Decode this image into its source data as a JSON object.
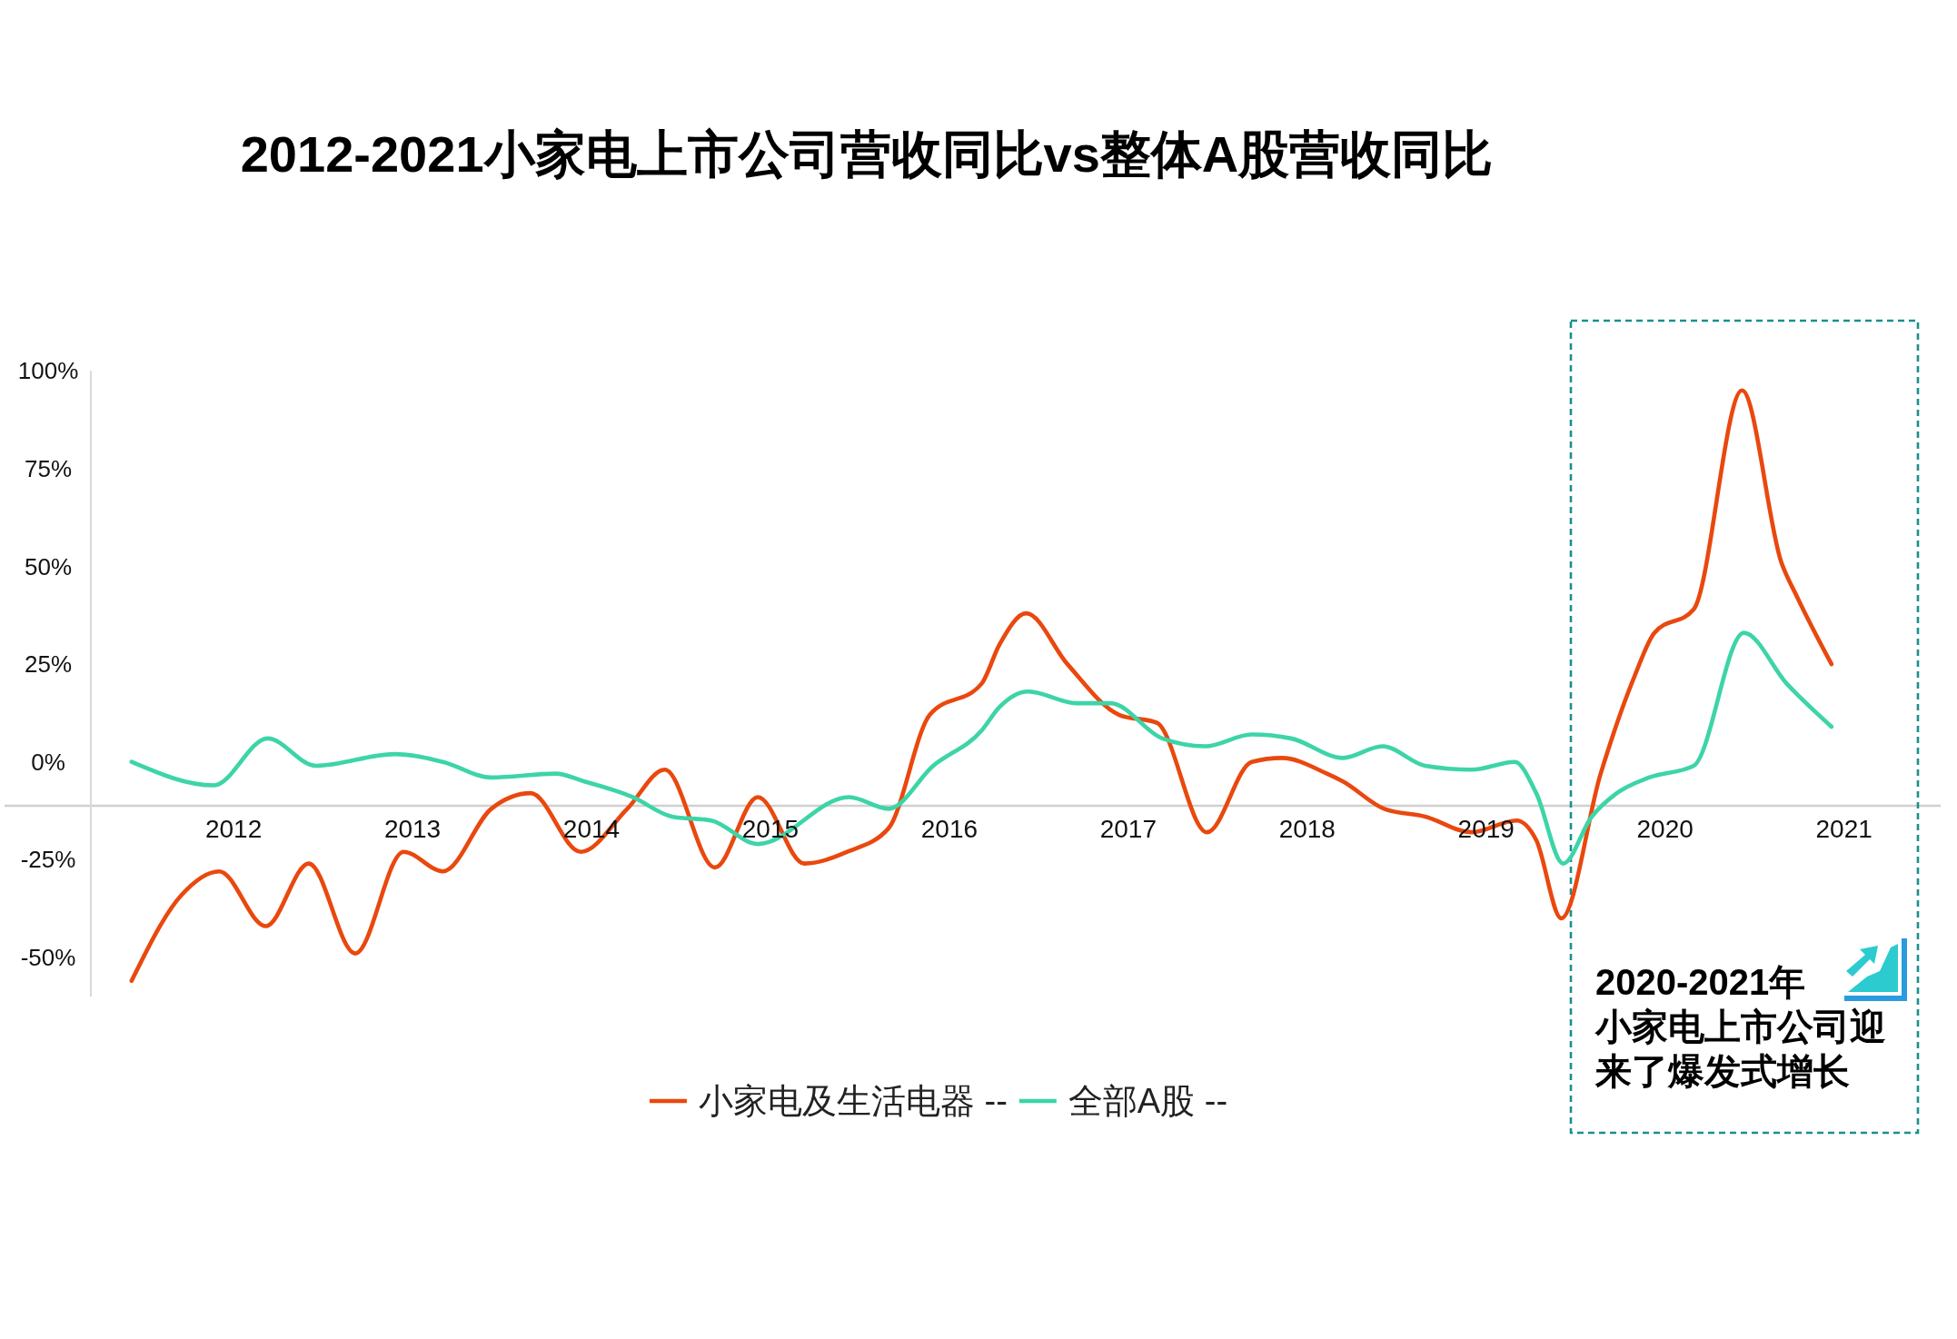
{
  "chart_data": {
    "type": "line",
    "title": "2012-2021小家电上市公司营收同比vs整体A股营收同比",
    "xlim": [
      2010.72,
      2021.54
    ],
    "xticks": [
      2012,
      2013,
      2014,
      2015,
      2016,
      2017,
      2018,
      2019,
      2020,
      2021
    ],
    "ylim": [
      -60,
      100
    ],
    "yticks": [
      {
        "value": 100,
        "label": "100%"
      },
      {
        "value": 75,
        "label": "75%"
      },
      {
        "value": 50,
        "label": "50%"
      },
      {
        "value": 25,
        "label": "25%"
      },
      {
        "value": 0,
        "label": "0%"
      },
      {
        "value": -25,
        "label": "-25%"
      },
      {
        "value": -50,
        "label": "-50%"
      }
    ],
    "series": [
      {
        "name": "小家电及生活电器 --",
        "color": "#e9480e",
        "x": [
          2011.43,
          2011.71,
          2011.92,
          2012.18,
          2012.42,
          2012.68,
          2012.95,
          2013.17,
          2013.44,
          2013.66,
          2013.94,
          2014.2,
          2014.41,
          2014.69,
          2014.93,
          2015.19,
          2015.43,
          2015.66,
          2015.89,
          2016.18,
          2016.28,
          2016.43,
          2016.66,
          2016.95,
          2017.16,
          2017.44,
          2017.69,
          2017.86,
          2018.11,
          2018.2,
          2018.43,
          2018.66,
          2018.92,
          2019.17,
          2019.28,
          2019.42,
          2019.64,
          2019.83,
          2019.94,
          2020.16,
          2020.43,
          2020.65,
          2020.74,
          2020.93
        ],
        "values": [
          -56,
          -34,
          -28,
          -42,
          -26,
          -49,
          -23,
          -28,
          -12,
          -8,
          -23,
          -12,
          -2,
          -27,
          -9,
          -26,
          -23,
          -17,
          12,
          20,
          30,
          38,
          25,
          12,
          10,
          -18,
          0,
          1,
          -3,
          -5,
          -12,
          -14,
          -18,
          -15,
          -20,
          -40,
          -3,
          22,
          33,
          39,
          95,
          51,
          42,
          25
        ]
      },
      {
        "name": "全部A股 --",
        "color": "#3dd4a8",
        "x": [
          2011.43,
          2011.89,
          2012.19,
          2012.46,
          2012.9,
          2013.17,
          2013.44,
          2013.8,
          2013.96,
          2014.23,
          2014.45,
          2014.67,
          2014.93,
          2015.44,
          2015.66,
          2015.91,
          2016.18,
          2016.28,
          2016.44,
          2016.71,
          2016.9,
          2017.19,
          2017.43,
          2017.69,
          2017.91,
          2018.2,
          2018.42,
          2018.66,
          2018.92,
          2019.16,
          2019.28,
          2019.43,
          2019.59,
          2019.73,
          2019.91,
          2020.16,
          2020.44,
          2020.68,
          2020.93
        ],
        "values": [
          0,
          -6,
          6,
          -1,
          2,
          0,
          -4,
          -3,
          -5,
          -9,
          -14,
          -15,
          -21,
          -9,
          -12,
          -1,
          8,
          14,
          18,
          15,
          15,
          6,
          4,
          7,
          6,
          1,
          4,
          -1,
          -2,
          0,
          -8,
          -26,
          -14,
          -8,
          -4,
          -1,
          33,
          20,
          9
        ]
      }
    ],
    "legend": "bottom",
    "annotations": [
      "2020-2021年小家电上市公司迎来了爆发式增长"
    ]
  }
}
